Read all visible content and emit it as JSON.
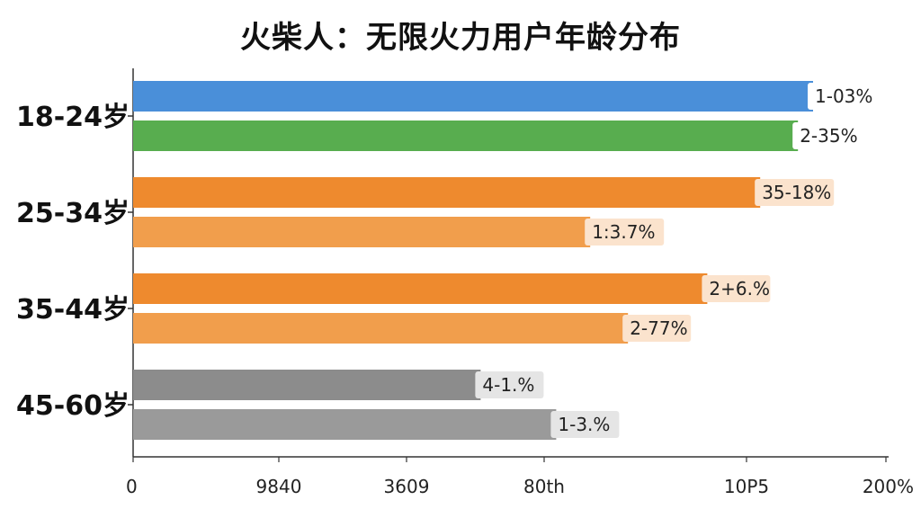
{
  "chart_data": {
    "type": "bar",
    "orientation": "horizontal",
    "title": "火柴人：无限火力用户年龄分布",
    "xlim": [
      0,
      200
    ],
    "categories": [
      "18-24岁",
      "25-34岁",
      "35-44岁",
      "45-60岁"
    ],
    "x_tick_labels": [
      "0",
      "9840",
      "3609",
      "80th",
      "10P5",
      "200%"
    ],
    "bars": [
      {
        "category": "18-24岁",
        "value": 180,
        "label": "1-03%",
        "color": "#4a8fd9"
      },
      {
        "category": "18-24岁",
        "value": 176,
        "label": "2-35%",
        "color": "#58ad4f"
      },
      {
        "category": "25-34岁",
        "value": 166,
        "label": "35-18%",
        "color": "#ee8a2e"
      },
      {
        "category": "25-34岁",
        "value": 121,
        "label": "1:3.7%",
        "color": "#f19e4c"
      },
      {
        "category": "35-44岁",
        "value": 152,
        "label": "2+6.%",
        "color": "#ee8a2e"
      },
      {
        "category": "35-44岁",
        "value": 131,
        "label": "2-77%",
        "color": "#f19e4c"
      },
      {
        "category": "45-60岁",
        "value": 92,
        "label": "4-1.%",
        "color": "#8c8c8c"
      },
      {
        "category": "45-60岁",
        "value": 112,
        "label": "1-3.%",
        "color": "#9a9a9a"
      }
    ],
    "label_box_colors": {
      "blue": "#ffffff",
      "green": "#ffffff",
      "orange": "#fbe3cd",
      "gray": "#e5e5e5"
    },
    "grid": false,
    "legend": "none"
  }
}
